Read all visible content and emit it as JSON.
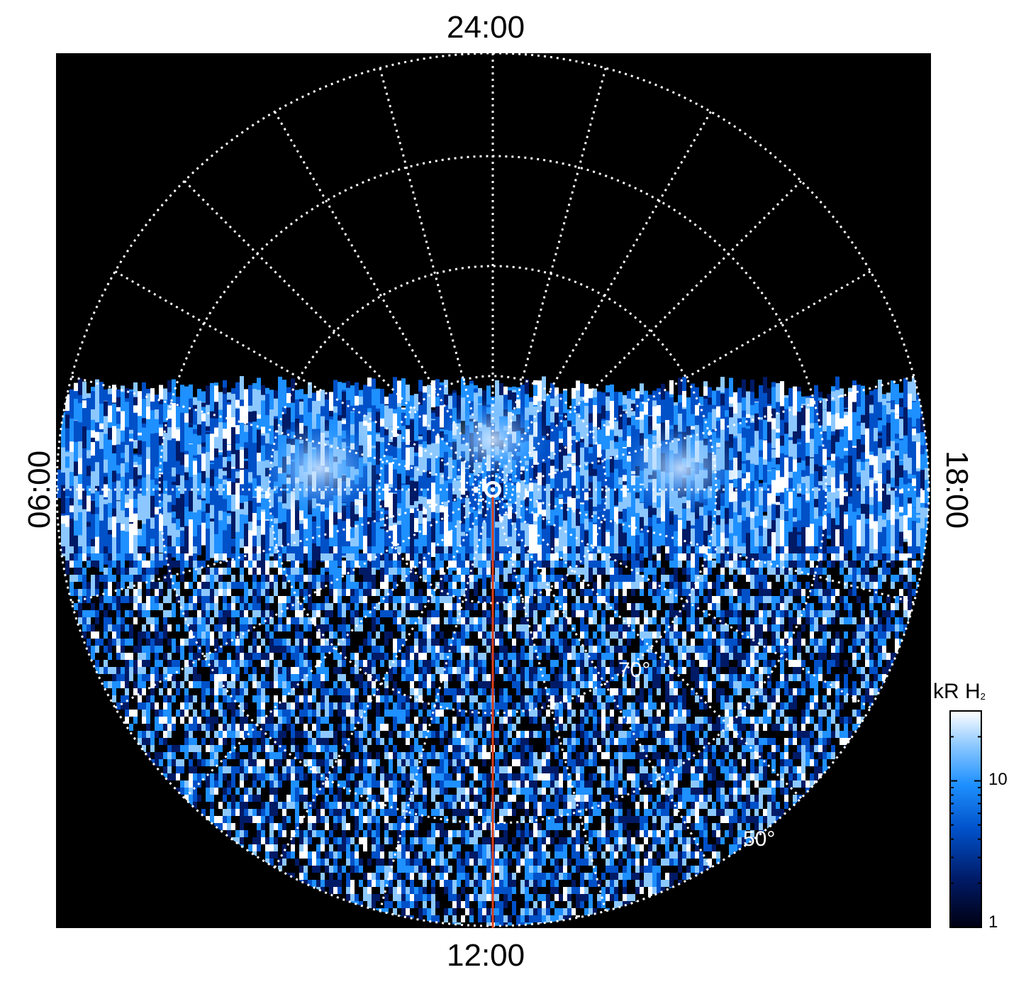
{
  "chart_data": {
    "type": "heatmap",
    "projection": "polar",
    "title": "",
    "local_time_labels": {
      "top": "24:00",
      "right": "18:00",
      "bottom": "12:00",
      "left": "06:00"
    },
    "latitude_labels": [
      "70°",
      "50°"
    ],
    "colorbar": {
      "title": "kR H",
      "title_subscript": "2",
      "scale": "log",
      "range": [
        1,
        30
      ],
      "tick_labels": [
        "10",
        "1"
      ],
      "colors": [
        "#000010",
        "#001a66",
        "#0050c8",
        "#1e90ff",
        "#8cc8ff",
        "#ffffff"
      ]
    },
    "features": {
      "main_emission_band": "bright blue-white auroral band across dawn-dusk line near the pole",
      "nightside": "no data (black)",
      "reference_meridian_color": "#e0401a"
    },
    "grid": true,
    "background": "#000000",
    "grid_color": "#ffffff"
  }
}
